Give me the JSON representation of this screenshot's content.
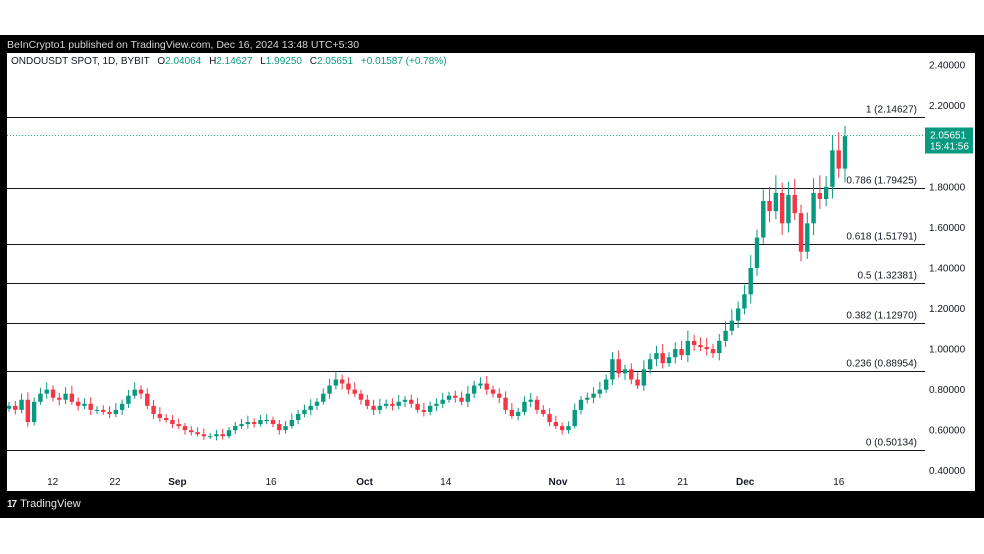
{
  "publish": {
    "text": "BeInCrypto1 published on TradingView.com, Dec 16, 2024 13:48 UTC+5:30"
  },
  "footer": {
    "brand": "TradingView",
    "logo_mark": "17"
  },
  "legend": {
    "symbol": "ONDOUSDT SPOT, 1D, BYBIT",
    "o_label": "O",
    "o_value": "2.04064",
    "h_label": "H",
    "h_value": "2.14627",
    "l_label": "L",
    "l_value": "1.99250",
    "c_label": "C",
    "c_value": "2.05651",
    "change": "+0.01587 (+0.78%)"
  },
  "price_tag": {
    "price": "2.05651",
    "countdown": "15:41:56"
  },
  "colors": {
    "up": "#089981",
    "down": "#f23645",
    "fib_line": "#131722",
    "price_line": "#22ab94",
    "legend_value": "#089981"
  },
  "chart_data": {
    "type": "candlestick",
    "ylim": [
      0.3,
      2.46
    ],
    "yticks": [
      "2.40000",
      "2.20000",
      "2.00000",
      "1.80000",
      "1.60000",
      "1.40000",
      "1.20000",
      "1.00000",
      "0.80000",
      "0.60000",
      "0.40000"
    ],
    "ytick_values": [
      2.4,
      2.2,
      2.0,
      1.8,
      1.6,
      1.4,
      1.2,
      1.0,
      0.8,
      0.6,
      0.4
    ],
    "x_start_day": 0,
    "xlim_days": [
      0,
      134
    ],
    "xticks": [
      {
        "label": "12",
        "day": 7
      },
      {
        "label": "22",
        "day": 17
      },
      {
        "label": "Sep",
        "day": 27
      },
      {
        "label": "16",
        "day": 42
      },
      {
        "label": "Oct",
        "day": 57
      },
      {
        "label": "14",
        "day": 70
      },
      {
        "label": "Nov",
        "day": 88
      },
      {
        "label": "11",
        "day": 98
      },
      {
        "label": "21",
        "day": 108
      },
      {
        "label": "Dec",
        "day": 118
      },
      {
        "label": "16",
        "day": 133
      }
    ],
    "fib_levels": [
      {
        "label": "1 (2.14627)",
        "value": 2.14627
      },
      {
        "label": "0.786 (1.79425)",
        "value": 1.79425
      },
      {
        "label": "0.618 (1.51791)",
        "value": 1.51791
      },
      {
        "label": "0.5 (1.32381)",
        "value": 1.32381
      },
      {
        "label": "0.382 (1.12970)",
        "value": 1.1297
      },
      {
        "label": "0.236 (0.88954)",
        "value": 0.88954
      },
      {
        "label": "0 (0.50134)",
        "value": 0.50134
      }
    ],
    "last_price": 2.05651,
    "closes": [
      0.72,
      0.7,
      0.75,
      0.64,
      0.74,
      0.78,
      0.8,
      0.76,
      0.75,
      0.78,
      0.74,
      0.72,
      0.73,
      0.7,
      0.7,
      0.69,
      0.68,
      0.7,
      0.73,
      0.77,
      0.8,
      0.78,
      0.72,
      0.68,
      0.66,
      0.65,
      0.63,
      0.62,
      0.6,
      0.59,
      0.58,
      0.57,
      0.57,
      0.58,
      0.57,
      0.6,
      0.62,
      0.63,
      0.64,
      0.63,
      0.65,
      0.65,
      0.63,
      0.6,
      0.62,
      0.65,
      0.68,
      0.7,
      0.72,
      0.74,
      0.78,
      0.82,
      0.85,
      0.83,
      0.8,
      0.78,
      0.75,
      0.72,
      0.7,
      0.72,
      0.73,
      0.72,
      0.74,
      0.75,
      0.73,
      0.7,
      0.69,
      0.72,
      0.73,
      0.75,
      0.77,
      0.76,
      0.74,
      0.78,
      0.82,
      0.83,
      0.8,
      0.78,
      0.76,
      0.7,
      0.67,
      0.69,
      0.74,
      0.75,
      0.7,
      0.68,
      0.64,
      0.62,
      0.6,
      0.62,
      0.7,
      0.75,
      0.76,
      0.78,
      0.8,
      0.85,
      0.95,
      0.88,
      0.9,
      0.85,
      0.82,
      0.9,
      0.95,
      0.98,
      0.93,
      0.96,
      1.0,
      0.97,
      1.04,
      1.02,
      1.01,
      1.0,
      0.98,
      1.04,
      1.09,
      1.14,
      1.2,
      1.27,
      1.4,
      1.55,
      1.73,
      1.68,
      1.77,
      1.62,
      1.76,
      1.67,
      1.48,
      1.62,
      1.77,
      1.74,
      1.8,
      1.98,
      1.89,
      2.05
    ]
  }
}
